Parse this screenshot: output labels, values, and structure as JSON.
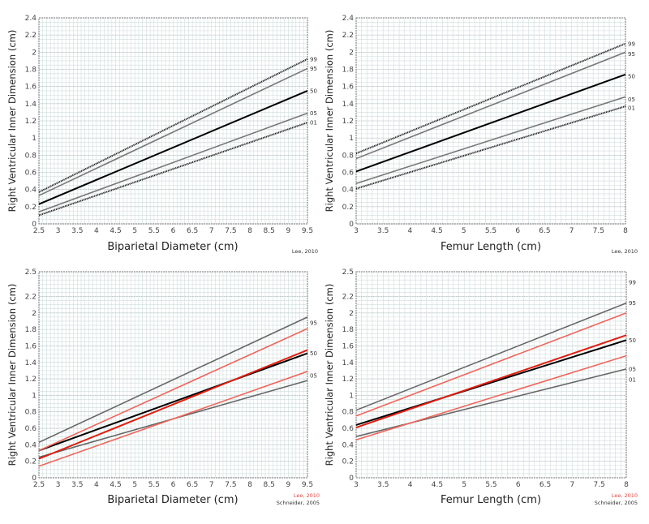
{
  "chart_data": [
    {
      "type": "line",
      "title": "",
      "xlabel": "Biparietal Diameter (cm)",
      "ylabel": "Right Ventricular Inner Dimension (cm)",
      "xlim": [
        2.5,
        9.5
      ],
      "ylim": [
        0,
        2.4
      ],
      "xticks": [
        2.5,
        3,
        3.5,
        4,
        4.5,
        5,
        5.5,
        6,
        6.5,
        7,
        7.5,
        8,
        8.5,
        9,
        9.5
      ],
      "yticks": [
        0,
        0.2,
        0.4,
        0.6,
        0.8,
        1,
        1.2,
        1.4,
        1.6,
        1.8,
        2,
        2.2,
        2.4
      ],
      "ytick_labels": [
        "0",
        "0.2",
        "0.4",
        "0.6",
        "0.8",
        "1",
        "1.2",
        "1.4",
        "1.6",
        "1.8",
        "2",
        "2.2",
        "2.4"
      ],
      "grid": true,
      "credits": [
        {
          "text": "Lee, 2010",
          "color": "#333333"
        }
      ],
      "series": [
        {
          "name": "99",
          "source": "Lee, 2010",
          "x": [
            2.5,
            9.5
          ],
          "y": [
            0.37,
            1.92
          ],
          "color": "#222222",
          "style": "dotted"
        },
        {
          "name": "95",
          "source": "Lee, 2010",
          "x": [
            2.5,
            9.5
          ],
          "y": [
            0.33,
            1.81
          ],
          "color": "#777777",
          "style": "solid"
        },
        {
          "name": "50",
          "source": "Lee, 2010",
          "x": [
            2.5,
            9.5
          ],
          "y": [
            0.23,
            1.55
          ],
          "color": "#000000",
          "style": "bold"
        },
        {
          "name": "05",
          "source": "Lee, 2010",
          "x": [
            2.5,
            9.5
          ],
          "y": [
            0.14,
            1.29
          ],
          "color": "#777777",
          "style": "solid"
        },
        {
          "name": "01",
          "source": "Lee, 2010",
          "x": [
            2.5,
            9.5
          ],
          "y": [
            0.1,
            1.18
          ],
          "color": "#222222",
          "style": "dotted"
        }
      ],
      "percentile_labels": [
        {
          "text": "99",
          "y": 1.92
        },
        {
          "text": "95",
          "y": 1.81
        },
        {
          "text": "50",
          "y": 1.55
        },
        {
          "text": "05",
          "y": 1.29
        },
        {
          "text": "01",
          "y": 1.18
        }
      ]
    },
    {
      "type": "line",
      "title": "",
      "xlabel": "Femur Length (cm)",
      "ylabel": "Right Ventricular Inner Dimension (cm)",
      "xlim": [
        3,
        8
      ],
      "ylim": [
        0,
        2.4
      ],
      "xticks": [
        3,
        3.5,
        4,
        4.5,
        5,
        5.5,
        6,
        6.5,
        7,
        7.5,
        8
      ],
      "yticks": [
        0,
        0.2,
        0.4,
        0.6,
        0.8,
        1,
        1.2,
        1.4,
        1.6,
        1.8,
        2,
        2.2,
        2.4
      ],
      "ytick_labels": [
        "0",
        "0.2",
        "0.4",
        "0.6",
        "0.8",
        "1",
        "1.2",
        "1.4",
        "1.6",
        "1.8",
        "2",
        "2.2",
        "2.4"
      ],
      "grid": true,
      "credits": [
        {
          "text": "Lee, 2010",
          "color": "#333333"
        }
      ],
      "series": [
        {
          "name": "99",
          "source": "Lee, 2010",
          "x": [
            3,
            8
          ],
          "y": [
            0.82,
            2.1
          ],
          "color": "#222222",
          "style": "dotted"
        },
        {
          "name": "95",
          "source": "Lee, 2010",
          "x": [
            3,
            8
          ],
          "y": [
            0.76,
            2.0
          ],
          "color": "#777777",
          "style": "solid"
        },
        {
          "name": "50",
          "source": "Lee, 2010",
          "x": [
            3,
            8
          ],
          "y": [
            0.61,
            1.74
          ],
          "color": "#000000",
          "style": "bold"
        },
        {
          "name": "05",
          "source": "Lee, 2010",
          "x": [
            3,
            8
          ],
          "y": [
            0.47,
            1.48
          ],
          "color": "#777777",
          "style": "solid"
        },
        {
          "name": "01",
          "source": "Lee, 2010",
          "x": [
            3,
            8
          ],
          "y": [
            0.41,
            1.37
          ],
          "color": "#222222",
          "style": "dotted"
        }
      ],
      "percentile_labels": [
        {
          "text": "99",
          "y": 2.1
        },
        {
          "text": "95",
          "y": 1.98
        },
        {
          "text": "50",
          "y": 1.72
        },
        {
          "text": "05",
          "y": 1.45
        },
        {
          "text": "01",
          "y": 1.35
        }
      ]
    },
    {
      "type": "line",
      "title": "",
      "xlabel": "Biparietal Diameter (cm)",
      "ylabel": "Right Ventricular Inner Dimension (cm)",
      "xlim": [
        2.5,
        9.5
      ],
      "ylim": [
        0,
        2.5
      ],
      "xticks": [
        2.5,
        3,
        3.5,
        4,
        4.5,
        5,
        5.5,
        6,
        6.5,
        7,
        7.5,
        8,
        8.5,
        9,
        9.5
      ],
      "yticks": [
        0,
        0.2,
        0.4,
        0.6,
        0.8,
        1,
        1.2,
        1.4,
        1.6,
        1.8,
        2,
        2.2,
        2.5
      ],
      "ytick_labels": [
        "0",
        "0.2",
        "0.4",
        "0.6",
        "0.8",
        "1",
        "1.2",
        "1.4",
        "1.6",
        "1.8",
        "2",
        "2.2",
        "2.5"
      ],
      "grid": true,
      "credits": [
        {
          "text": "Lee, 2010",
          "color": "#e8453c"
        },
        {
          "text": "Schneider, 2005",
          "color": "#333333"
        }
      ],
      "series": [
        {
          "name": "95",
          "source": "Schneider, 2005",
          "x": [
            2.5,
            9.5
          ],
          "y": [
            0.43,
            1.95
          ],
          "color": "#666666",
          "style": "solid"
        },
        {
          "name": "50",
          "source": "Schneider, 2005",
          "x": [
            2.5,
            9.5
          ],
          "y": [
            0.33,
            1.51
          ],
          "color": "#000000",
          "style": "bold"
        },
        {
          "name": "05",
          "source": "Schneider, 2005",
          "x": [
            2.5,
            9.5
          ],
          "y": [
            0.25,
            1.18
          ],
          "color": "#666666",
          "style": "solid"
        },
        {
          "name": "95",
          "source": "Lee, 2010",
          "x": [
            2.5,
            9.5
          ],
          "y": [
            0.33,
            1.81
          ],
          "color": "#f0665c",
          "style": "solid"
        },
        {
          "name": "50",
          "source": "Lee, 2010",
          "x": [
            2.5,
            9.5
          ],
          "y": [
            0.23,
            1.55
          ],
          "color": "#e01e10",
          "style": "bold"
        },
        {
          "name": "05",
          "source": "Lee, 2010",
          "x": [
            2.5,
            9.5
          ],
          "y": [
            0.14,
            1.29
          ],
          "color": "#f0665c",
          "style": "solid"
        }
      ],
      "percentile_labels": [
        {
          "text": "95",
          "y": 1.88
        },
        {
          "text": "50",
          "y": 1.51
        },
        {
          "text": "05",
          "y": 1.24
        }
      ]
    },
    {
      "type": "line",
      "title": "",
      "xlabel": "Femur Length (cm)",
      "ylabel": "Right Ventricular Inner Dimension (cm)",
      "xlim": [
        3,
        8
      ],
      "ylim": [
        0,
        2.5
      ],
      "xticks": [
        3,
        3.5,
        4,
        4.5,
        5,
        5.5,
        6,
        6.5,
        7,
        7.5,
        8
      ],
      "yticks": [
        0,
        0.2,
        0.4,
        0.6,
        0.8,
        1,
        1.2,
        1.4,
        1.6,
        1.8,
        2,
        2.2,
        2.5
      ],
      "ytick_labels": [
        "0",
        "0.2",
        "0.4",
        "0.6",
        "0.8",
        "1",
        "1.2",
        "1.4",
        "1.6",
        "1.8",
        "2",
        "2.2",
        "2.5"
      ],
      "grid": true,
      "credits": [
        {
          "text": "Lee, 2010",
          "color": "#e8453c"
        },
        {
          "text": "Schneider, 2005",
          "color": "#333333"
        }
      ],
      "series": [
        {
          "name": "95",
          "source": "Schneider, 2005",
          "x": [
            3,
            8
          ],
          "y": [
            0.82,
            2.12
          ],
          "color": "#666666",
          "style": "solid"
        },
        {
          "name": "50",
          "source": "Schneider, 2005",
          "x": [
            3,
            8
          ],
          "y": [
            0.64,
            1.67
          ],
          "color": "#000000",
          "style": "bold"
        },
        {
          "name": "05",
          "source": "Schneider, 2005",
          "x": [
            3,
            8
          ],
          "y": [
            0.5,
            1.32
          ],
          "color": "#666666",
          "style": "solid"
        },
        {
          "name": "95",
          "source": "Lee, 2010",
          "x": [
            3,
            8
          ],
          "y": [
            0.75,
            2.0
          ],
          "color": "#f0665c",
          "style": "solid"
        },
        {
          "name": "50",
          "source": "Lee, 2010",
          "x": [
            3,
            8
          ],
          "y": [
            0.61,
            1.73
          ],
          "color": "#e01e10",
          "style": "bold"
        },
        {
          "name": "05",
          "source": "Lee, 2010",
          "x": [
            3,
            8
          ],
          "y": [
            0.46,
            1.48
          ],
          "color": "#f0665c",
          "style": "solid"
        }
      ],
      "percentile_labels": [
        {
          "text": "99",
          "y": 2.37
        },
        {
          "text": "95",
          "y": 2.12
        },
        {
          "text": "50",
          "y": 1.67
        },
        {
          "text": "05",
          "y": 1.32
        },
        {
          "text": "01",
          "y": 1.19
        }
      ]
    }
  ]
}
